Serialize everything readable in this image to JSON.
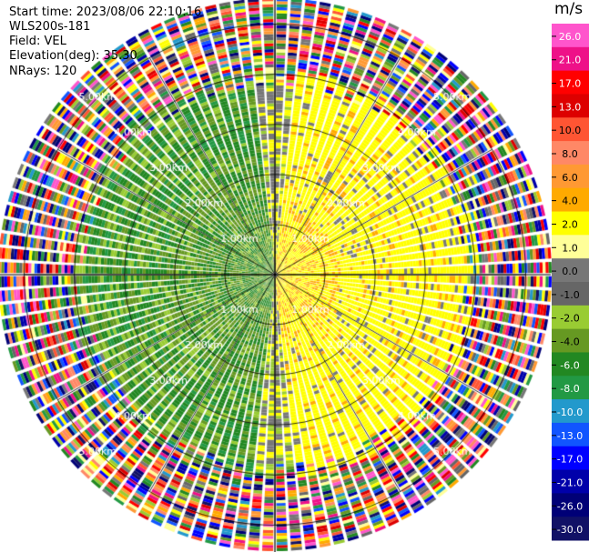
{
  "header": {
    "start_time": "Start time: 2023/08/06 22:10:16",
    "site": "WLS200s-181",
    "field": "Field: VEL",
    "elevation": "Elevation(deg): 35.30",
    "nrays": "NRays: 120"
  },
  "chart_data": {
    "type": "heatmap",
    "subtype": "polar-ppi",
    "field": "VEL",
    "units": "m/s",
    "nrays": 120,
    "elevation_deg": 35.3,
    "range_rings_km": [
      1,
      2,
      3,
      4,
      5
    ],
    "range_ring_labels": [
      "1.00km",
      "2.00km",
      "3.00km",
      "4.00km",
      "5.00km"
    ],
    "max_range_km": 5.5,
    "spokes_deg": [
      0,
      30,
      60,
      90,
      120,
      150,
      180,
      210,
      240,
      270,
      300,
      330
    ],
    "colorbar": {
      "unit_label": "m/s",
      "ticks": [
        "26.0",
        "21.0",
        "17.0",
        "13.0",
        "10.0",
        "8.0",
        "6.0",
        "4.0",
        "2.0",
        "1.0",
        "0.0",
        "-1.0",
        "-2.0",
        "-4.0",
        "-6.0",
        "-8.0",
        "-10.0",
        "-13.0",
        "-17.0",
        "-21.0",
        "-26.0",
        "-30.0"
      ],
      "colors": [
        "#ff55cc",
        "#ee1188",
        "#ff0000",
        "#dd0000",
        "#ff5533",
        "#ff8866",
        "#ff9933",
        "#ffaa00",
        "#ffff00",
        "#ffff99",
        "#777777",
        "#666666",
        "#99cc33",
        "#669922",
        "#228822",
        "#229944",
        "#2299cc",
        "#1155ff",
        "#0000ff",
        "#0000aa",
        "#000077",
        "#111166"
      ]
    }
  }
}
